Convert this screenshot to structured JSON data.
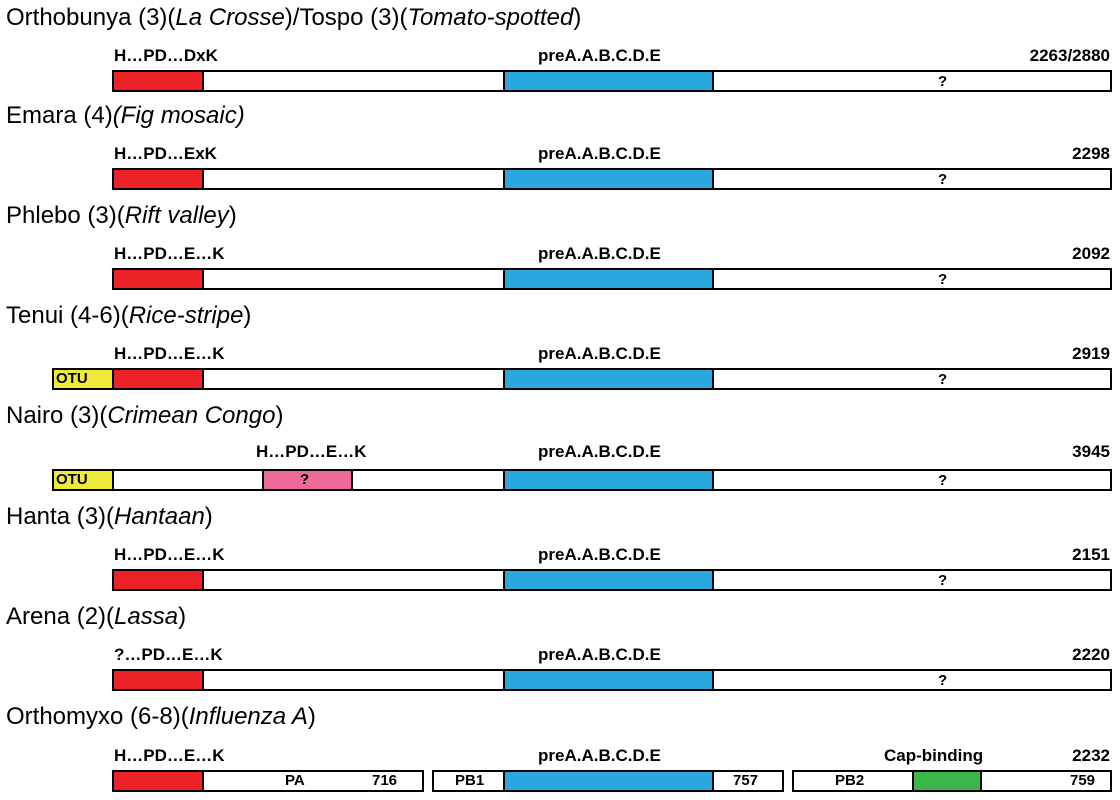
{
  "colors": {
    "endonuclease": "#ec2227",
    "polymerase": "#29a8e0",
    "otu": "#eeea3a",
    "nairo_endo": "#ee6a9a",
    "cap_binding": "#3cb54a"
  },
  "rows": [
    {
      "title_parts": [
        {
          "t": "Orthobunya (3)(",
          "i": false
        },
        {
          "t": "La Crosse",
          "i": true
        },
        {
          "t": ")/Tospo (3)(",
          "i": false
        },
        {
          "t": "Tomato-spotted",
          "i": true
        },
        {
          "t": ")",
          "i": false
        }
      ],
      "motif": "H…PD…DxK",
      "pol": "preA.A.B.C.D.E",
      "length": "2263/2880",
      "unknown": "?"
    },
    {
      "title_parts": [
        {
          "t": "Emara (4)",
          "i": false
        },
        {
          "t": "(Fig mosaic)",
          "i": true
        }
      ],
      "motif": "H…PD…ExK",
      "pol": "preA.A.B.C.D.E",
      "length": "2298",
      "unknown": "?"
    },
    {
      "title_parts": [
        {
          "t": "Phlebo (3)(",
          "i": false
        },
        {
          "t": "Rift valley",
          "i": true
        },
        {
          "t": ")",
          "i": false
        }
      ],
      "motif": "H…PD…E…K",
      "pol": "preA.A.B.C.D.E",
      "length": "2092",
      "unknown": "?"
    },
    {
      "title_parts": [
        {
          "t": "Tenui (4-6)(",
          "i": false
        },
        {
          "t": "Rice-stripe",
          "i": true
        },
        {
          "t": ")",
          "i": false
        }
      ],
      "motif": "H…PD…E…K",
      "pol": "preA.A.B.C.D.E",
      "length": "2919",
      "unknown": "?",
      "otu": "OTU"
    },
    {
      "title_parts": [
        {
          "t": "Nairo (3)(",
          "i": false
        },
        {
          "t": "Crimean Congo",
          "i": true
        },
        {
          "t": ")",
          "i": false
        }
      ],
      "motif": "H…PD…E…K",
      "pol": "preA.A.B.C.D.E",
      "length": "3945",
      "unknown": "?",
      "otu": "OTU",
      "endo_unknown": "?"
    },
    {
      "title_parts": [
        {
          "t": "Hanta (3)(",
          "i": false
        },
        {
          "t": "Hantaan",
          "i": true
        },
        {
          "t": ")",
          "i": false
        }
      ],
      "motif": "H…PD…E…K",
      "pol": "preA.A.B.C.D.E",
      "length": "2151",
      "unknown": "?"
    },
    {
      "title_parts": [
        {
          "t": "Arena (2)(",
          "i": false
        },
        {
          "t": "Lassa",
          "i": true
        },
        {
          "t": ")",
          "i": false
        }
      ],
      "motif": "?…PD…E…K",
      "pol": "preA.A.B.C.D.E",
      "length": "2220",
      "unknown": "?"
    }
  ],
  "influenza": {
    "title_parts": [
      {
        "t": "Orthomyxo (6-8)(",
        "i": false
      },
      {
        "t": "Influenza A",
        "i": true
      },
      {
        "t": ")",
        "i": false
      }
    ],
    "motif": "H…PD…E…K",
    "pol": "preA.A.B.C.D.E",
    "cap": "Cap-binding",
    "total": "2232",
    "pa": {
      "name": "PA",
      "len": "716"
    },
    "pb1": {
      "name": "PB1",
      "len": "757"
    },
    "pb2": {
      "name": "PB2",
      "len": "759"
    }
  }
}
